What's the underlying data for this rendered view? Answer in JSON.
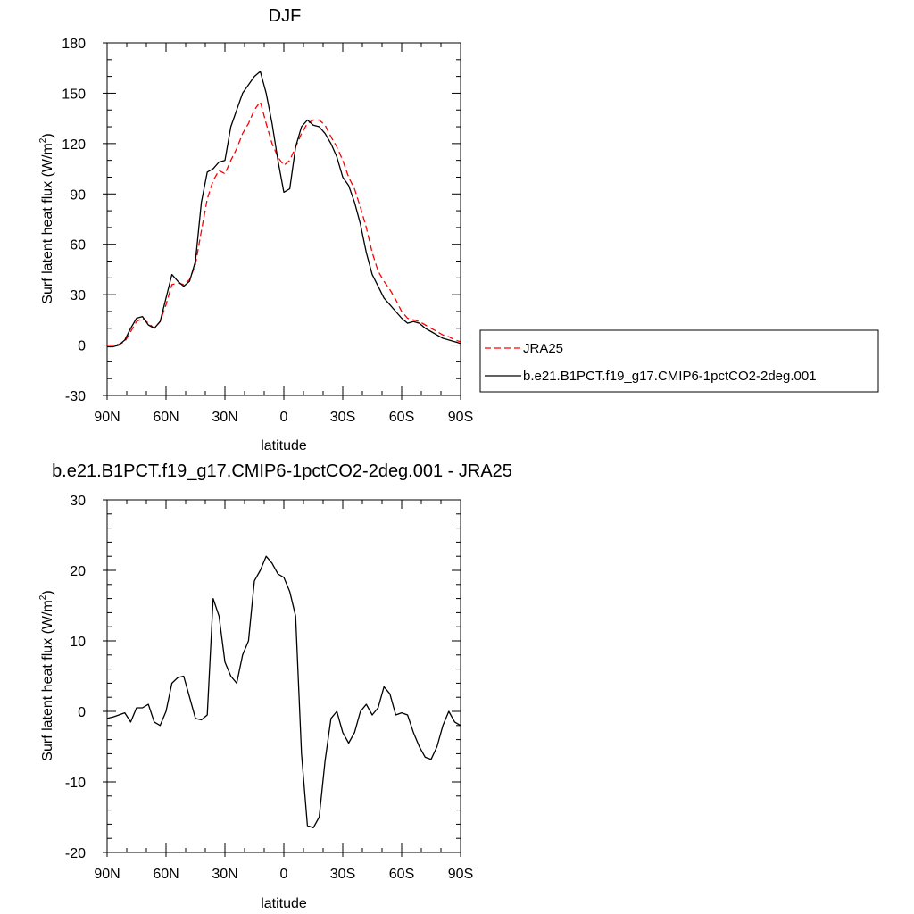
{
  "chart_data": [
    {
      "type": "line",
      "title": "DJF",
      "xlabel": "latitude",
      "ylabel": "Surf latent heat flux (W/m",
      "ylabel_sup": "2",
      "ylabel_end": ")",
      "xlim": [
        -90,
        90
      ],
      "ylim": [
        -30,
        180
      ],
      "xticks": [
        -90,
        -60,
        -30,
        0,
        30,
        60,
        90
      ],
      "xtick_labels": [
        "90N",
        "60N",
        "30N",
        "0",
        "30S",
        "60S",
        "90S"
      ],
      "yticks": [
        -30,
        0,
        30,
        60,
        90,
        120,
        150,
        180
      ],
      "ytick_labels": [
        "-30",
        "0",
        "30",
        "60",
        "90",
        "120",
        "150",
        "180"
      ],
      "grid": false,
      "legend": "right",
      "series": [
        {
          "name": "JRA25",
          "color": "#ff0000",
          "dash": "dashed",
          "x": [
            -90,
            -87,
            -84,
            -81,
            -78,
            -75,
            -72,
            -69,
            -66,
            -63,
            -60,
            -57,
            -54,
            -51,
            -48,
            -45,
            -42,
            -39,
            -36,
            -33,
            -30,
            -27,
            -24,
            -21,
            -18,
            -15,
            -12,
            -9,
            -6,
            -3,
            0,
            3,
            6,
            9,
            12,
            15,
            18,
            21,
            24,
            27,
            30,
            33,
            36,
            39,
            42,
            45,
            48,
            51,
            54,
            57,
            60,
            63,
            66,
            69,
            72,
            75,
            78,
            81,
            84,
            87,
            90
          ],
          "y": [
            0,
            0,
            0.5,
            2,
            8,
            14,
            16,
            13,
            10,
            14,
            24,
            36,
            37,
            36,
            39,
            48,
            68,
            87,
            98,
            104,
            102,
            110,
            117,
            126,
            132,
            140,
            145,
            132,
            120,
            112,
            107,
            110,
            118,
            126,
            132,
            134,
            134,
            131,
            124,
            118,
            110,
            100,
            93,
            82,
            70,
            55,
            44,
            38,
            33,
            27,
            20,
            16,
            15,
            14,
            12,
            10,
            8,
            6,
            5,
            3,
            2
          ]
        },
        {
          "name": "b.e21.B1PCT.f19_g17.CMIP6-1pctCO2-2deg.001",
          "color": "#000000",
          "dash": "solid",
          "x": [
            -90,
            -87,
            -84,
            -81,
            -78,
            -75,
            -72,
            -69,
            -66,
            -63,
            -60,
            -57,
            -54,
            -51,
            -48,
            -45,
            -42,
            -39,
            -36,
            -33,
            -30,
            -27,
            -24,
            -21,
            -18,
            -15,
            -12,
            -9,
            -6,
            -3,
            0,
            3,
            6,
            9,
            12,
            15,
            18,
            21,
            24,
            27,
            30,
            33,
            36,
            39,
            42,
            45,
            48,
            51,
            54,
            57,
            60,
            63,
            66,
            69,
            72,
            75,
            78,
            81,
            84,
            87,
            90
          ],
          "y": [
            -1,
            -1,
            0,
            3,
            10,
            16,
            17,
            12,
            10,
            14,
            28,
            42,
            38,
            35,
            38,
            50,
            85,
            103,
            105,
            109,
            110,
            130,
            140,
            150,
            155,
            160,
            163,
            150,
            132,
            110,
            91,
            93,
            118,
            130,
            134,
            131,
            130,
            126,
            120,
            112,
            100,
            95,
            85,
            72,
            55,
            42,
            35,
            28,
            24,
            20,
            16,
            13,
            14,
            13,
            10,
            8,
            6,
            4,
            3,
            2,
            1
          ]
        }
      ]
    },
    {
      "type": "line",
      "title": "b.e21.B1PCT.f19_g17.CMIP6-1pctCO2-2deg.001 - JRA25",
      "xlabel": "latitude",
      "ylabel": "Surf latent heat flux (W/m",
      "ylabel_sup": "2",
      "ylabel_end": ")",
      "xlim": [
        -90,
        90
      ],
      "ylim": [
        -20,
        30
      ],
      "xticks": [
        -90,
        -60,
        -30,
        0,
        30,
        60,
        90
      ],
      "xtick_labels": [
        "90N",
        "60N",
        "30N",
        "0",
        "30S",
        "60S",
        "90S"
      ],
      "yticks": [
        -20,
        -10,
        0,
        10,
        20,
        30
      ],
      "ytick_labels": [
        "-20",
        "-10",
        "0",
        "10",
        "20",
        "30"
      ],
      "grid": false,
      "series": [
        {
          "color": "#000000",
          "dash": "solid",
          "x": [
            -90,
            -87,
            -84,
            -81,
            -78,
            -75,
            -72,
            -69,
            -66,
            -63,
            -60,
            -57,
            -54,
            -51,
            -48,
            -45,
            -42,
            -39,
            -36,
            -33,
            -30,
            -27,
            -24,
            -21,
            -18,
            -15,
            -12,
            -9,
            -6,
            -3,
            0,
            3,
            6,
            9,
            12,
            15,
            18,
            21,
            24,
            27,
            30,
            33,
            36,
            39,
            42,
            45,
            48,
            51,
            54,
            57,
            60,
            63,
            66,
            69,
            72,
            75,
            78,
            81,
            84,
            87,
            90
          ],
          "y": [
            -1,
            -0.8,
            -0.5,
            -0.2,
            -1.5,
            0.5,
            0.5,
            1,
            -1.5,
            -2,
            0,
            4,
            4.8,
            5,
            2,
            -1,
            -1.2,
            -0.5,
            16,
            13.5,
            7,
            5,
            4,
            8,
            10,
            18.5,
            20,
            22,
            21,
            19.5,
            19,
            17,
            13.5,
            -6,
            -16.2,
            -16.5,
            -15,
            -7,
            -1,
            0,
            -3,
            -4.5,
            -3,
            0,
            1,
            -0.5,
            0.5,
            3.5,
            2.5,
            -0.5,
            -0.2,
            -0.5,
            -3,
            -5,
            -6.5,
            -6.8,
            -5,
            -2,
            0,
            -1.5,
            -2
          ]
        }
      ]
    }
  ]
}
